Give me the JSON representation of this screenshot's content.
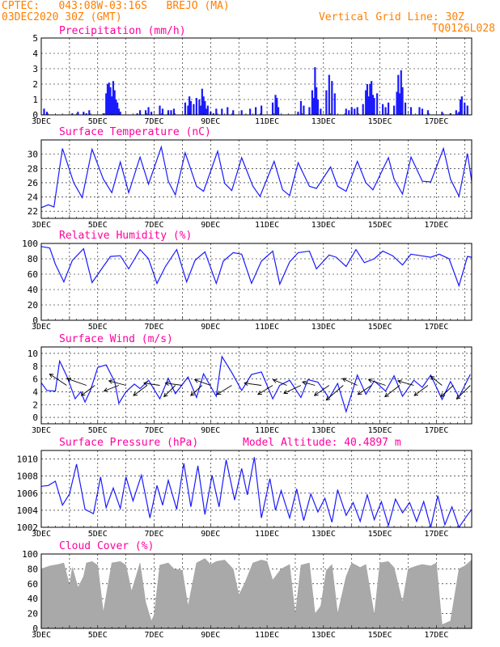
{
  "header": {
    "line1_left": "CPTEC:   043:08W-03:16S   BREJO (MA)",
    "line2_left": "03DEC2020 30Z (GMT)",
    "line1_right": "Vertical Grid Line: 30Z",
    "line2_right": "TQ0126L028",
    "model_altitude": "Model Altitude: 40.4897 m"
  },
  "colors": {
    "header": "#ff7f00",
    "titles": "#ff00a0",
    "series": "#1a1aff",
    "cloud": "#a9a9a9",
    "wind_arrow": "#000000",
    "grid": "#000000"
  },
  "x_axis": {
    "range_days": [
      3.0,
      18.25
    ],
    "vertical_grid_days": [
      4,
      5,
      6,
      7,
      8,
      9,
      10,
      11,
      12,
      13,
      14,
      15,
      16,
      17,
      18
    ],
    "tick_labels": [
      {
        "day": 3,
        "text": "3DEC"
      },
      {
        "day": 5,
        "text": "5DEC"
      },
      {
        "day": 7,
        "text": "7DEC"
      },
      {
        "day": 9,
        "text": "9DEC"
      },
      {
        "day": 11,
        "text": "11DEC"
      },
      {
        "day": 13,
        "text": "13DEC"
      },
      {
        "day": 15,
        "text": "15DEC"
      },
      {
        "day": 17,
        "text": "17DEC"
      }
    ]
  },
  "chart_data": [
    {
      "id": "precip",
      "type": "bar",
      "title": "Precipitation (mm/h)",
      "ylim": [
        0,
        5
      ],
      "yticks": [
        0,
        1,
        2,
        3,
        4,
        5
      ],
      "x": [
        3.1,
        3.2,
        4.1,
        4.3,
        4.5,
        4.6,
        4.7,
        5.2,
        5.3,
        5.35,
        5.4,
        5.45,
        5.5,
        5.55,
        5.6,
        5.65,
        5.7,
        5.75,
        5.8,
        6.4,
        6.5,
        6.7,
        6.8,
        6.9,
        7.2,
        7.3,
        7.5,
        7.6,
        7.7,
        8.1,
        8.2,
        8.25,
        8.3,
        8.4,
        8.5,
        8.6,
        8.65,
        8.7,
        8.75,
        8.8,
        8.85,
        8.9,
        9.0,
        9.1,
        9.2,
        9.4,
        9.6,
        9.8,
        10.1,
        10.4,
        10.6,
        10.8,
        11.2,
        11.3,
        11.35,
        11.4,
        12.1,
        12.2,
        12.3,
        12.5,
        12.6,
        12.65,
        12.7,
        12.75,
        12.8,
        12.9,
        13.1,
        13.2,
        13.3,
        13.4,
        13.8,
        13.9,
        14.0,
        14.1,
        14.2,
        14.4,
        14.5,
        14.55,
        14.6,
        14.65,
        14.7,
        14.75,
        14.8,
        14.9,
        15.1,
        15.2,
        15.3,
        15.5,
        15.6,
        15.65,
        15.7,
        15.75,
        15.8,
        15.9,
        16.1,
        16.4,
        16.5,
        16.7,
        17.2,
        17.5,
        17.7,
        17.8,
        17.85,
        17.9,
        18.0,
        18.1
      ],
      "values": [
        0.4,
        0.2,
        0.1,
        0.2,
        0.2,
        0.1,
        0.3,
        0.1,
        1.4,
        2.0,
        2.1,
        1.8,
        1.2,
        2.2,
        1.6,
        1.0,
        0.8,
        0.4,
        0.2,
        0.1,
        0.3,
        0.3,
        0.5,
        0.2,
        0.6,
        0.4,
        0.3,
        0.3,
        0.4,
        0.8,
        0.6,
        1.2,
        0.9,
        0.7,
        1.1,
        1.0,
        0.6,
        1.7,
        1.2,
        0.9,
        0.4,
        0.6,
        0.2,
        0.1,
        0.4,
        0.4,
        0.5,
        0.3,
        0.3,
        0.4,
        0.5,
        0.6,
        0.8,
        1.3,
        1.1,
        0.5,
        0.2,
        0.9,
        0.6,
        0.5,
        1.6,
        1.1,
        3.1,
        1.8,
        1.0,
        0.4,
        1.6,
        2.6,
        2.2,
        1.4,
        0.4,
        0.3,
        0.5,
        0.4,
        0.5,
        0.7,
        1.6,
        2.0,
        1.2,
        2.0,
        2.2,
        1.3,
        1.1,
        1.4,
        0.7,
        0.5,
        0.8,
        0.6,
        1.5,
        2.6,
        1.4,
        2.9,
        1.8,
        0.8,
        0.5,
        0.5,
        0.4,
        0.3,
        0.2,
        0.1,
        0.3,
        0.2,
        1.0,
        1.2,
        0.8,
        0.6
      ]
    },
    {
      "id": "temp",
      "type": "line",
      "title": "Surface Temperature (nC)",
      "ylim": [
        21,
        32
      ],
      "yticks": [
        22,
        24,
        26,
        28,
        30
      ],
      "x": [
        3.0,
        3.25,
        3.45,
        3.75,
        4.15,
        4.45,
        4.8,
        5.2,
        5.5,
        5.8,
        6.1,
        6.5,
        6.8,
        7.25,
        7.5,
        7.75,
        8.1,
        8.5,
        8.75,
        9.25,
        9.5,
        9.75,
        10.1,
        10.5,
        10.75,
        11.25,
        11.55,
        11.8,
        12.1,
        12.5,
        12.75,
        13.25,
        13.5,
        13.8,
        14.2,
        14.5,
        14.75,
        15.3,
        15.5,
        15.8,
        16.1,
        16.5,
        16.8,
        17.25,
        17.5,
        17.8,
        18.1,
        18.25
      ],
      "values": [
        22.5,
        22.9,
        22.6,
        30.8,
        26.0,
        23.9,
        30.7,
        26.5,
        24.6,
        28.9,
        24.6,
        29.6,
        25.8,
        31.0,
        26.2,
        24.3,
        30.2,
        25.5,
        24.8,
        30.4,
        25.9,
        24.9,
        29.5,
        25.5,
        24.1,
        29.0,
        25.0,
        24.2,
        28.8,
        25.5,
        25.2,
        28.2,
        25.5,
        24.8,
        29.0,
        26.0,
        25.0,
        29.5,
        26.5,
        24.4,
        29.6,
        26.2,
        26.1,
        30.8,
        26.5,
        24.1,
        30.1,
        26.2
      ]
    },
    {
      "id": "rh",
      "type": "line",
      "title": "Relative Humidity (%)",
      "ylim": [
        0,
        100
      ],
      "yticks": [
        0,
        20,
        40,
        60,
        80,
        100
      ],
      "x": [
        3.0,
        3.3,
        3.5,
        3.8,
        4.1,
        4.5,
        4.8,
        5.2,
        5.45,
        5.8,
        6.1,
        6.5,
        6.8,
        7.1,
        7.4,
        7.8,
        8.15,
        8.45,
        8.8,
        9.2,
        9.45,
        9.8,
        10.1,
        10.45,
        10.8,
        11.2,
        11.45,
        11.8,
        12.1,
        12.5,
        12.75,
        13.2,
        13.45,
        13.8,
        14.15,
        14.45,
        14.8,
        15.1,
        15.45,
        15.8,
        16.1,
        16.45,
        16.8,
        17.1,
        17.45,
        17.8,
        18.1,
        18.25
      ],
      "values": [
        96,
        94,
        73,
        50,
        78,
        93,
        49,
        70,
        83,
        84,
        67,
        92,
        80,
        48,
        70,
        92,
        50,
        78,
        89,
        48,
        77,
        88,
        86,
        48,
        77,
        90,
        47,
        76,
        88,
        90,
        67,
        85,
        82,
        70,
        92,
        75,
        80,
        90,
        84,
        72,
        86,
        84,
        82,
        86,
        80,
        45,
        83,
        82
      ]
    },
    {
      "id": "wind",
      "type": "line",
      "title": "Surface Wind (m/s)",
      "ylim": [
        -1,
        11
      ],
      "yticks": [
        0,
        2,
        4,
        6,
        8,
        10
      ],
      "x": [
        3.0,
        3.2,
        3.5,
        3.65,
        3.9,
        4.2,
        4.4,
        4.55,
        4.75,
        5.0,
        5.3,
        5.6,
        5.75,
        6.0,
        6.3,
        6.5,
        6.8,
        7.2,
        7.5,
        7.75,
        8.2,
        8.5,
        8.75,
        9.2,
        9.4,
        9.75,
        10.1,
        10.45,
        10.8,
        11.2,
        11.45,
        11.8,
        12.2,
        12.45,
        12.8,
        13.2,
        13.5,
        13.8,
        14.2,
        14.5,
        14.8,
        15.2,
        15.5,
        15.8,
        16.2,
        16.5,
        16.8,
        17.2,
        17.5,
        17.8,
        18.2
      ],
      "values": [
        5.4,
        4.2,
        4.1,
        8.8,
        6.5,
        2.9,
        4.0,
        2.4,
        4.3,
        7.8,
        8.2,
        5.6,
        2.2,
        4.0,
        5.2,
        4.5,
        5.8,
        2.9,
        6.1,
        3.7,
        6.3,
        3.1,
        6.8,
        3.3,
        9.5,
        7.0,
        4.2,
        6.7,
        7.1,
        2.9,
        5.0,
        5.8,
        3.1,
        5.9,
        5.5,
        3.0,
        5.3,
        0.9,
        6.6,
        3.6,
        5.7,
        4.1,
        6.5,
        3.3,
        5.8,
        4.7,
        6.6,
        2.8,
        5.6,
        3.2,
        6.7
      ],
      "arrows": {
        "x": [
          3.9,
          4.6,
          4.9,
          5.75,
          6.0,
          6.75,
          7.2,
          7.75,
          8.0,
          8.7,
          9.0,
          9.75,
          10.8,
          11.2,
          11.7,
          12.2,
          12.7,
          13.2,
          13.7,
          14.2,
          14.7,
          15.2,
          15.7,
          16.2,
          16.7,
          17.2,
          17.6,
          18.2
        ],
        "u": [
          -1.5,
          -1.7,
          -1.2,
          -1.3,
          -1.5,
          -1.2,
          -1.4,
          -1.0,
          -1.5,
          -1.0,
          -1.4,
          -1.3,
          -1.5,
          -1.3,
          -1.2,
          -1.5,
          -1.1,
          -1.3,
          -1.5,
          -1.3,
          -1.2,
          -1.5,
          -1.3,
          -1.4,
          -1.2,
          -1.0,
          -1.1,
          -1.2
        ],
        "v": [
          1.0,
          0.6,
          -0.9,
          -0.5,
          0.4,
          -0.9,
          0.2,
          -1.0,
          0.2,
          -0.9,
          0.5,
          -0.8,
          0.2,
          -0.8,
          0.5,
          -0.7,
          0.3,
          -0.9,
          -1.3,
          0.6,
          -0.8,
          0.5,
          -1.0,
          0.4,
          -0.9,
          0.8,
          -1.0,
          -1.2
        ]
      }
    },
    {
      "id": "press",
      "type": "line",
      "title": "Surface Pressure (hPa)",
      "ylim": [
        1002,
        1011
      ],
      "yticks": [
        1002,
        1004,
        1006,
        1008,
        1010
      ],
      "x": [
        3.0,
        3.25,
        3.5,
        3.75,
        4.0,
        4.25,
        4.55,
        4.85,
        5.1,
        5.3,
        5.55,
        5.8,
        6.0,
        6.25,
        6.55,
        6.85,
        7.1,
        7.3,
        7.5,
        7.8,
        8.05,
        8.3,
        8.55,
        8.8,
        9.05,
        9.3,
        9.55,
        9.85,
        10.1,
        10.3,
        10.55,
        10.8,
        11.1,
        11.3,
        11.5,
        11.8,
        12.05,
        12.3,
        12.55,
        12.8,
        13.05,
        13.3,
        13.5,
        13.8,
        14.05,
        14.3,
        14.55,
        14.8,
        15.05,
        15.3,
        15.55,
        15.8,
        16.05,
        16.3,
        16.55,
        16.8,
        17.05,
        17.3,
        17.55,
        17.8,
        18.05,
        18.25
      ],
      "values": [
        1006.8,
        1006.9,
        1007.4,
        1004.6,
        1005.9,
        1009.4,
        1004.1,
        1003.6,
        1007.9,
        1004.3,
        1006.6,
        1004.2,
        1007.9,
        1005.1,
        1008.1,
        1003.1,
        1006.9,
        1004.6,
        1007.5,
        1004.1,
        1009.5,
        1004.4,
        1009.2,
        1003.5,
        1008.1,
        1004.4,
        1009.9,
        1005.2,
        1008.9,
        1005.8,
        1010.2,
        1003.1,
        1007.7,
        1004.0,
        1006.3,
        1003.1,
        1006.5,
        1002.8,
        1005.9,
        1003.8,
        1005.4,
        1002.6,
        1006.4,
        1003.4,
        1004.9,
        1002.7,
        1005.8,
        1002.9,
        1005.0,
        1002.2,
        1005.3,
        1003.7,
        1004.9,
        1002.7,
        1005.0,
        1002.0,
        1005.7,
        1002.3,
        1004.4,
        1001.7,
        1003.2,
        1004.1
      ]
    },
    {
      "id": "cloud",
      "type": "area",
      "title": "Cloud Cover (%)",
      "ylim": [
        0,
        100
      ],
      "yticks": [
        0,
        20,
        40,
        60,
        80,
        100
      ],
      "x": [
        3.0,
        3.3,
        3.6,
        3.8,
        4.0,
        4.1,
        4.3,
        4.5,
        4.6,
        4.8,
        5.0,
        5.2,
        5.5,
        5.8,
        6.0,
        6.2,
        6.5,
        6.7,
        6.9,
        7.0,
        7.2,
        7.5,
        7.7,
        8.0,
        8.2,
        8.5,
        8.8,
        9.0,
        9.2,
        9.5,
        9.8,
        10.0,
        10.2,
        10.5,
        10.8,
        11.0,
        11.2,
        11.5,
        11.8,
        12.0,
        12.2,
        12.5,
        12.7,
        12.9,
        13.1,
        13.3,
        13.5,
        13.8,
        14.0,
        14.3,
        14.5,
        14.8,
        15.0,
        15.3,
        15.5,
        15.8,
        16.0,
        16.3,
        16.5,
        16.8,
        17.0,
        17.2,
        17.5,
        17.8,
        18.0,
        18.25
      ],
      "values": [
        80,
        84,
        86,
        88,
        58,
        82,
        55,
        70,
        88,
        90,
        85,
        22,
        88,
        90,
        85,
        50,
        88,
        35,
        10,
        18,
        85,
        88,
        80,
        78,
        30,
        88,
        94,
        86,
        90,
        92,
        80,
        45,
        60,
        88,
        92,
        90,
        65,
        80,
        86,
        18,
        85,
        88,
        20,
        30,
        78,
        86,
        20,
        70,
        88,
        82,
        86,
        18,
        88,
        90,
        82,
        35,
        80,
        84,
        86,
        84,
        88,
        5,
        10,
        80,
        84,
        92
      ]
    }
  ]
}
